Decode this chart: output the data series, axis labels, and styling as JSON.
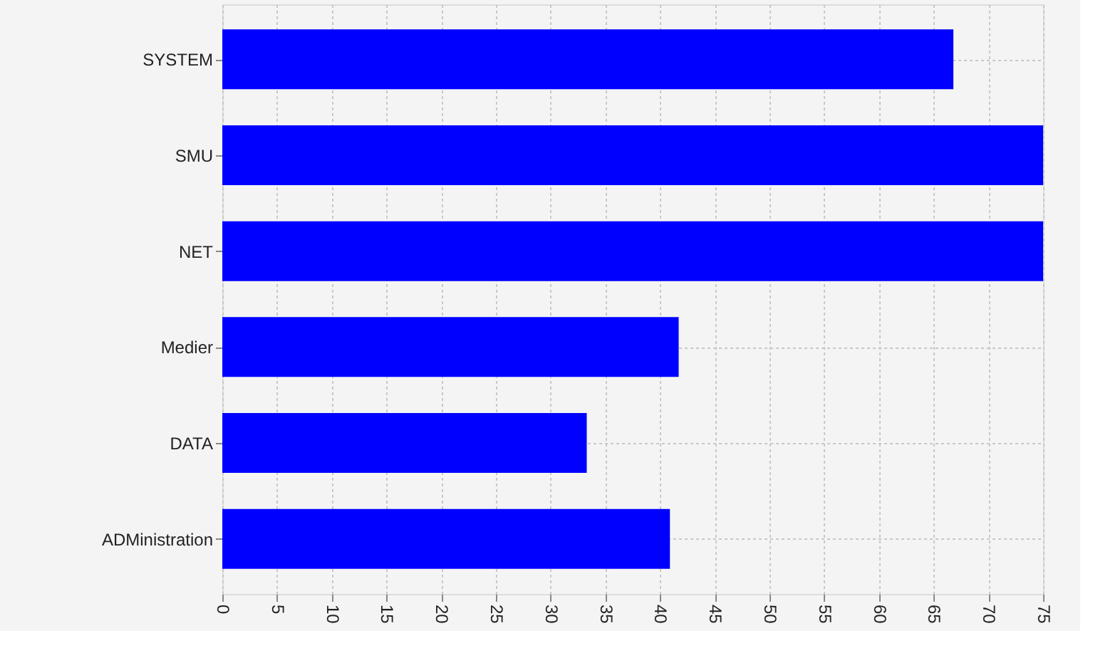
{
  "chart_data": {
    "type": "bar",
    "orientation": "horizontal",
    "categories": [
      "SYSTEM",
      "SMU",
      "NET",
      "Medier",
      "DATA",
      "ADMinistration"
    ],
    "values": [
      66.8,
      75,
      75,
      41.7,
      33.3,
      40.9
    ],
    "color": "#0000ff",
    "xlim": [
      0,
      75
    ],
    "xticks": [
      0,
      5,
      10,
      15,
      20,
      25,
      30,
      35,
      40,
      45,
      50,
      55,
      60,
      65,
      70,
      75
    ],
    "grid": true
  }
}
